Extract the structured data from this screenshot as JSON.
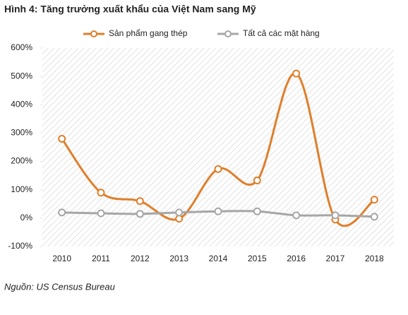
{
  "chart_data": {
    "type": "line",
    "title": "Hình 4: Tăng trưởng xuất khẩu của Việt Nam sang Mỹ",
    "source": "Nguồn: US Census Bureau",
    "categories": [
      "2010",
      "2011",
      "2012",
      "2013",
      "2014",
      "2015",
      "2016",
      "2017",
      "2018"
    ],
    "series": [
      {
        "name": "Sản phẩm gang thép",
        "color": "#df7f2b",
        "values": [
          280,
          90,
          60,
          -2,
          173,
          133,
          510,
          -5,
          65
        ]
      },
      {
        "name": "Tất cả các mặt hàng",
        "color": "#a6a6a6",
        "values": [
          20,
          17,
          15,
          20,
          24,
          24,
          10,
          10,
          5
        ]
      }
    ],
    "ylim": [
      -100,
      600
    ],
    "yticks": [
      {
        "value": -100,
        "label": "-100%"
      },
      {
        "value": 0,
        "label": "0%"
      },
      {
        "value": 100,
        "label": "100%"
      },
      {
        "value": 200,
        "label": "200%"
      },
      {
        "value": 300,
        "label": "300%"
      },
      {
        "value": 400,
        "label": "400%"
      },
      {
        "value": 500,
        "label": "500%"
      },
      {
        "value": 600,
        "label": "600%"
      }
    ],
    "smooth": true
  }
}
